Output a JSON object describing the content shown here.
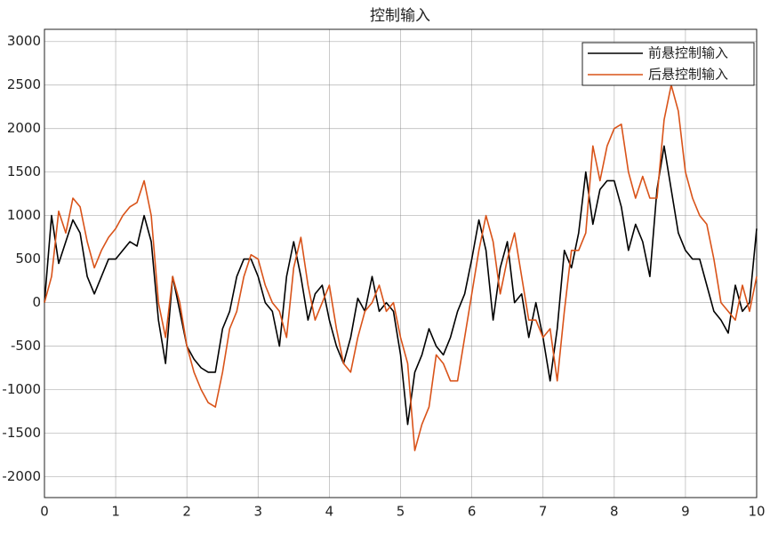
{
  "chart_data": {
    "type": "line",
    "title": "控制输入",
    "x": [
      0,
      0.1,
      0.2,
      0.3,
      0.4,
      0.5,
      0.6,
      0.7,
      0.8,
      0.9,
      1,
      1.1,
      1.2,
      1.3,
      1.4,
      1.5,
      1.6,
      1.7,
      1.8,
      1.9,
      2,
      2.1,
      2.2,
      2.3,
      2.4,
      2.5,
      2.6,
      2.7,
      2.8,
      2.9,
      3,
      3.1,
      3.2,
      3.3,
      3.4,
      3.5,
      3.6,
      3.7,
      3.8,
      3.9,
      4,
      4.1,
      4.2,
      4.3,
      4.4,
      4.5,
      4.6,
      4.7,
      4.8,
      4.9,
      5,
      5.1,
      5.2,
      5.3,
      5.4,
      5.5,
      5.6,
      5.7,
      5.8,
      5.9,
      6,
      6.1,
      6.2,
      6.3,
      6.4,
      6.5,
      6.6,
      6.7,
      6.8,
      6.9,
      7,
      7.1,
      7.2,
      7.3,
      7.4,
      7.5,
      7.6,
      7.7,
      7.8,
      7.9,
      8,
      8.1,
      8.2,
      8.3,
      8.4,
      8.5,
      8.6,
      8.7,
      8.8,
      8.9,
      9,
      9.1,
      9.2,
      9.3,
      9.4,
      9.5,
      9.6,
      9.7,
      9.8,
      9.9,
      10
    ],
    "series": [
      {
        "name": "前悬控制输入",
        "color": "#000000",
        "values": [
          0,
          1000,
          450,
          700,
          950,
          800,
          300,
          100,
          300,
          500,
          500,
          600,
          700,
          650,
          1000,
          700,
          -200,
          -700,
          300,
          -100,
          -500,
          -650,
          -750,
          -800,
          -800,
          -300,
          -100,
          300,
          500,
          500,
          300,
          0,
          -100,
          -500,
          300,
          700,
          300,
          -200,
          100,
          200,
          -200,
          -500,
          -700,
          -400,
          50,
          -100,
          300,
          -100,
          0,
          -100,
          -600,
          -1400,
          -800,
          -600,
          -300,
          -500,
          -600,
          -400,
          -100,
          100,
          500,
          950,
          600,
          -200,
          400,
          700,
          0,
          100,
          -400,
          0,
          -400,
          -900,
          -300,
          600,
          400,
          800,
          1500,
          900,
          1300,
          1400,
          1400,
          1100,
          600,
          900,
          700,
          300,
          1300,
          1800,
          1300,
          800,
          600,
          500,
          500,
          200,
          -100,
          -200,
          -350,
          200,
          -100,
          0,
          850
        ]
      },
      {
        "name": "后悬控制输入",
        "color": "#d95319",
        "values": [
          0,
          300,
          1050,
          800,
          1200,
          1100,
          700,
          400,
          600,
          750,
          850,
          1000,
          1100,
          1150,
          1400,
          1000,
          0,
          -400,
          300,
          0,
          -500,
          -800,
          -1000,
          -1150,
          -1200,
          -800,
          -300,
          -100,
          300,
          550,
          500,
          200,
          0,
          -100,
          -400,
          400,
          750,
          200,
          -200,
          0,
          200,
          -300,
          -700,
          -800,
          -400,
          -100,
          0,
          200,
          -100,
          0,
          -400,
          -700,
          -1700,
          -1400,
          -1200,
          -600,
          -700,
          -900,
          -900,
          -400,
          100,
          600,
          1000,
          700,
          100,
          500,
          800,
          300,
          -200,
          -200,
          -400,
          -300,
          -900,
          -100,
          600,
          600,
          800,
          1800,
          1400,
          1800,
          2000,
          2050,
          1500,
          1200,
          1450,
          1200,
          1200,
          2100,
          2500,
          2200,
          1500,
          1200,
          1000,
          900,
          500,
          0,
          -100,
          -200,
          200,
          -100,
          300
        ]
      }
    ],
    "xlim": [
      0,
      10
    ],
    "xticks": [
      0,
      1,
      2,
      3,
      4,
      5,
      6,
      7,
      8,
      9,
      10
    ],
    "ylim": [
      -2240,
      3140
    ],
    "yticks": [
      -2000,
      -1500,
      -1000,
      -500,
      0,
      500,
      1000,
      1500,
      2000,
      2500,
      3000
    ],
    "grid": true,
    "legend": "top-right"
  }
}
